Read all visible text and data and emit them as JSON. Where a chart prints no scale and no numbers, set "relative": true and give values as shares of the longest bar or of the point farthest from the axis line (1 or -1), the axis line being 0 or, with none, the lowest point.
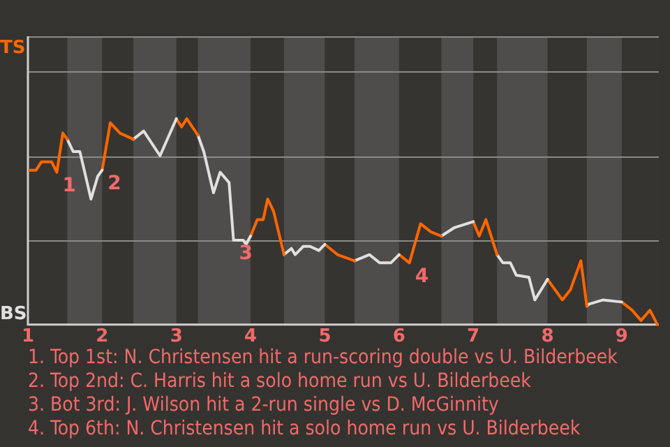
{
  "chart_data": {
    "type": "line",
    "relative": true,
    "xlim": [
      1,
      9.5
    ],
    "xticks": [
      1,
      2,
      3,
      4,
      5,
      6,
      7,
      8,
      9
    ],
    "ref_lines": [
      {
        "axis": "y",
        "value": 0.41,
        "color": "#8a8a88"
      },
      {
        "axis": "y",
        "value": 0.82,
        "color": "#8a8a88"
      },
      {
        "axis": "y",
        "value": 1.23,
        "color": "#8a8a88"
      }
    ],
    "legend": false,
    "marker": "none",
    "line_style": "solid",
    "bands": [
      {
        "axis": "x",
        "from": 1.53,
        "to": 2,
        "color": "#4e4d4b"
      },
      {
        "axis": "x",
        "from": 2.42,
        "to": 3,
        "color": "#4e4d4b"
      },
      {
        "axis": "x",
        "from": 3.29,
        "to": 4,
        "color": "#4e4d4b"
      },
      {
        "axis": "x",
        "from": 4.45,
        "to": 5,
        "color": "#4e4d4b"
      },
      {
        "axis": "x",
        "from": 5.4,
        "to": 6,
        "color": "#4e4d4b"
      },
      {
        "axis": "x",
        "from": 6.57,
        "to": 7,
        "color": "#4e4d4b"
      },
      {
        "axis": "x",
        "from": 7.32,
        "to": 8,
        "color": "#4e4d4b"
      },
      {
        "axis": "x",
        "from": 8.53,
        "to": 9,
        "color": "#4e4d4b"
      }
    ],
    "series": [
      {
        "color": "#ff6600",
        "x": [
          1.02,
          1.11,
          1.18,
          1.32,
          1.39,
          1.47,
          1.53
        ],
        "values": [
          0.75,
          0.75,
          0.79,
          0.79,
          0.74,
          0.93,
          0.9
        ]
      },
      {
        "color": "#e0e0e0",
        "x": [
          1.53,
          1.61,
          1.7,
          1.85,
          1.94,
          2
        ],
        "values": [
          0.9,
          0.84,
          0.84,
          0.61,
          0.72,
          0.75
        ]
      },
      {
        "color": "#ff6600",
        "x": [
          2,
          2.11,
          2.24,
          2.42
        ],
        "values": [
          0.75,
          0.98,
          0.93,
          0.9
        ]
      },
      {
        "color": "#e0e0e0",
        "x": [
          2.42,
          2.56,
          2.78,
          3
        ],
        "values": [
          0.9,
          0.94,
          0.82,
          1
        ]
      },
      {
        "color": "#ff6600",
        "x": [
          3,
          3.07,
          3.14,
          3.29
        ],
        "values": [
          1,
          0.96,
          1,
          0.92
        ]
      },
      {
        "color": "#e0e0e0",
        "x": [
          3.29,
          3.37,
          3.5,
          3.59,
          3.71,
          3.77,
          3.9,
          3.94,
          4
        ],
        "values": [
          0.92,
          0.84,
          0.64,
          0.74,
          0.69,
          0.41,
          0.41,
          0.39,
          0.43
        ]
      },
      {
        "color": "#ff6600",
        "x": [
          4,
          4.09,
          4.17,
          4.23,
          4.31,
          4.45
        ],
        "values": [
          0.43,
          0.51,
          0.51,
          0.61,
          0.55,
          0.34
        ]
      },
      {
        "color": "#e0e0e0",
        "x": [
          4.45,
          4.55,
          4.6,
          4.71,
          4.8,
          4.92,
          5
        ],
        "values": [
          0.34,
          0.37,
          0.34,
          0.38,
          0.38,
          0.36,
          0.39
        ]
      },
      {
        "color": "#ff6600",
        "x": [
          5,
          5.17,
          5.4
        ],
        "values": [
          0.39,
          0.34,
          0.31
        ]
      },
      {
        "color": "#e0e0e0",
        "x": [
          5.4,
          5.6,
          5.74,
          5.89,
          6
        ],
        "values": [
          0.31,
          0.34,
          0.3,
          0.3,
          0.34
        ]
      },
      {
        "color": "#ff6600",
        "x": [
          6,
          6.14,
          6.29,
          6.43,
          6.57
        ],
        "values": [
          0.34,
          0.3,
          0.49,
          0.45,
          0.43
        ]
      },
      {
        "color": "#e0e0e0",
        "x": [
          6.57,
          6.74,
          7
        ],
        "values": [
          0.43,
          0.47,
          0.5
        ]
      },
      {
        "color": "#ff6600",
        "x": [
          7,
          7.08,
          7.17,
          7.32
        ],
        "values": [
          0.5,
          0.43,
          0.51,
          0.34
        ]
      },
      {
        "color": "#e0e0e0",
        "x": [
          7.32,
          7.4,
          7.5,
          7.58,
          7.75,
          7.83,
          8
        ],
        "values": [
          0.34,
          0.3,
          0.3,
          0.24,
          0.23,
          0.12,
          0.22
        ]
      },
      {
        "color": "#ff6600",
        "x": [
          8,
          8.2,
          8.31,
          8.45,
          8.53
        ],
        "values": [
          0.22,
          0.12,
          0.17,
          0.31,
          0.09
        ]
      },
      {
        "color": "#e0e0e0",
        "x": [
          8.53,
          8.56,
          8.75,
          9
        ],
        "values": [
          0.09,
          0.1,
          0.12,
          0.11
        ]
      },
      {
        "color": "#ff6600",
        "x": [
          9,
          9.14,
          9.26,
          9.38,
          9.48
        ],
        "values": [
          0.11,
          0.07,
          0.02,
          0.07,
          0
        ]
      }
    ],
    "annotations": [
      "TS",
      "BS",
      {
        "text": "1",
        "x": 1.39,
        "y": 0.74
      },
      {
        "text": "2",
        "x": 2,
        "y": 0.75
      },
      {
        "text": "3",
        "x": 3.77,
        "y": 0.41
      },
      {
        "text": "4",
        "x": 6.14,
        "y": 0.3
      },
      "1. Top 1st: N. Christensen hit a run-scoring double vs U. Bilderbeek",
      "2. Top 2nd: C. Harris hit a solo home run vs U. Bilderbeek",
      "3. Bot 3rd: J. Wilson hit a 2-run single vs D. McGinnity",
      "4. Top 6th: N. Christensen hit a solo home run vs U. Bilderbeek"
    ]
  }
}
